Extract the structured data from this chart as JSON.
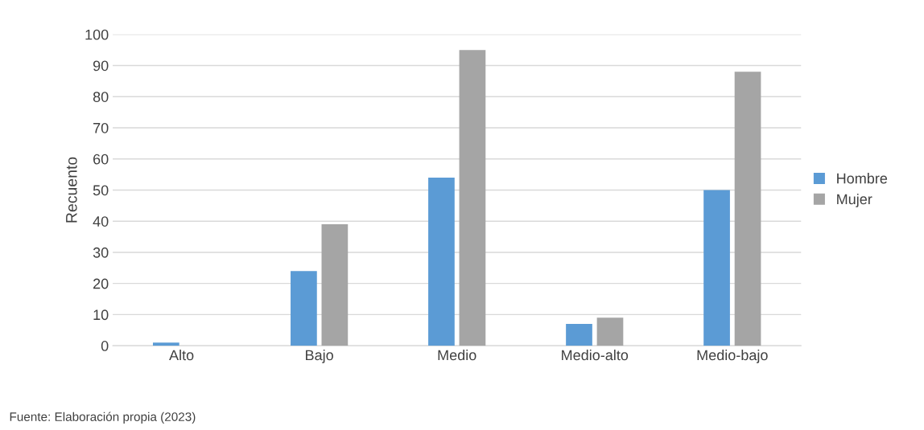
{
  "chart_data": {
    "type": "bar",
    "ylabel": "Recuento",
    "categories": [
      "Alto",
      "Bajo",
      "Medio",
      "Medio-alto",
      "Medio-bajo"
    ],
    "series": [
      {
        "name": "Hombre",
        "color": "#5b9bd5",
        "values": [
          1,
          24,
          54,
          7,
          50
        ]
      },
      {
        "name": "Mujer",
        "color": "#a5a5a5",
        "values": [
          0,
          39,
          95,
          9,
          88
        ]
      }
    ],
    "ylim": [
      0,
      100
    ],
    "yticks": [
      0,
      10,
      20,
      30,
      40,
      50,
      60,
      70,
      80,
      90,
      100
    ],
    "grid": "y",
    "legend": "right",
    "annotations": [
      "Fuente: Elaboración propia (2023)"
    ]
  }
}
